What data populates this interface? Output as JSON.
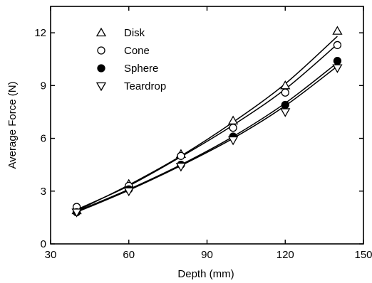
{
  "chart_data": {
    "type": "scatter",
    "title": "",
    "xlabel": "Depth (mm)",
    "ylabel": "Average Force (N)",
    "xlim": [
      30,
      150
    ],
    "ylim": [
      0,
      13.5
    ],
    "xticks": [
      30,
      60,
      90,
      120,
      150
    ],
    "yticks": [
      0,
      3,
      6,
      9,
      12
    ],
    "grid": false,
    "legend_position": "top-left",
    "series": [
      {
        "name": "Disk",
        "marker": "triangle-up",
        "fill": "none",
        "x": [
          40,
          60,
          80,
          100,
          120,
          140
        ],
        "y": [
          1.9,
          3.4,
          5.1,
          7.0,
          9.0,
          12.1
        ],
        "fit_y": [
          1.88,
          3.35,
          5.0,
          6.92,
          9.1,
          11.8
        ]
      },
      {
        "name": "Cone",
        "marker": "circle",
        "fill": "none",
        "x": [
          40,
          60,
          80,
          100,
          120,
          140
        ],
        "y": [
          2.1,
          3.3,
          5.0,
          6.6,
          8.6,
          11.3
        ],
        "fit_y": [
          1.95,
          3.3,
          4.95,
          6.75,
          8.8,
          11.35
        ]
      },
      {
        "name": "Sphere",
        "marker": "circle",
        "fill": "#000000",
        "x": [
          40,
          60,
          80,
          100,
          120,
          140
        ],
        "y": [
          1.8,
          3.1,
          4.5,
          6.1,
          7.9,
          10.4
        ],
        "fit_y": [
          1.85,
          3.1,
          4.5,
          6.1,
          8.0,
          10.3
        ]
      },
      {
        "name": "Teardrop",
        "marker": "triangle-down",
        "fill": "none",
        "x": [
          40,
          60,
          80,
          100,
          120,
          140
        ],
        "y": [
          1.8,
          3.0,
          4.4,
          5.9,
          7.5,
          10.0
        ],
        "fit_y": [
          1.8,
          3.05,
          4.45,
          6.0,
          7.85,
          10.1
        ]
      }
    ]
  }
}
